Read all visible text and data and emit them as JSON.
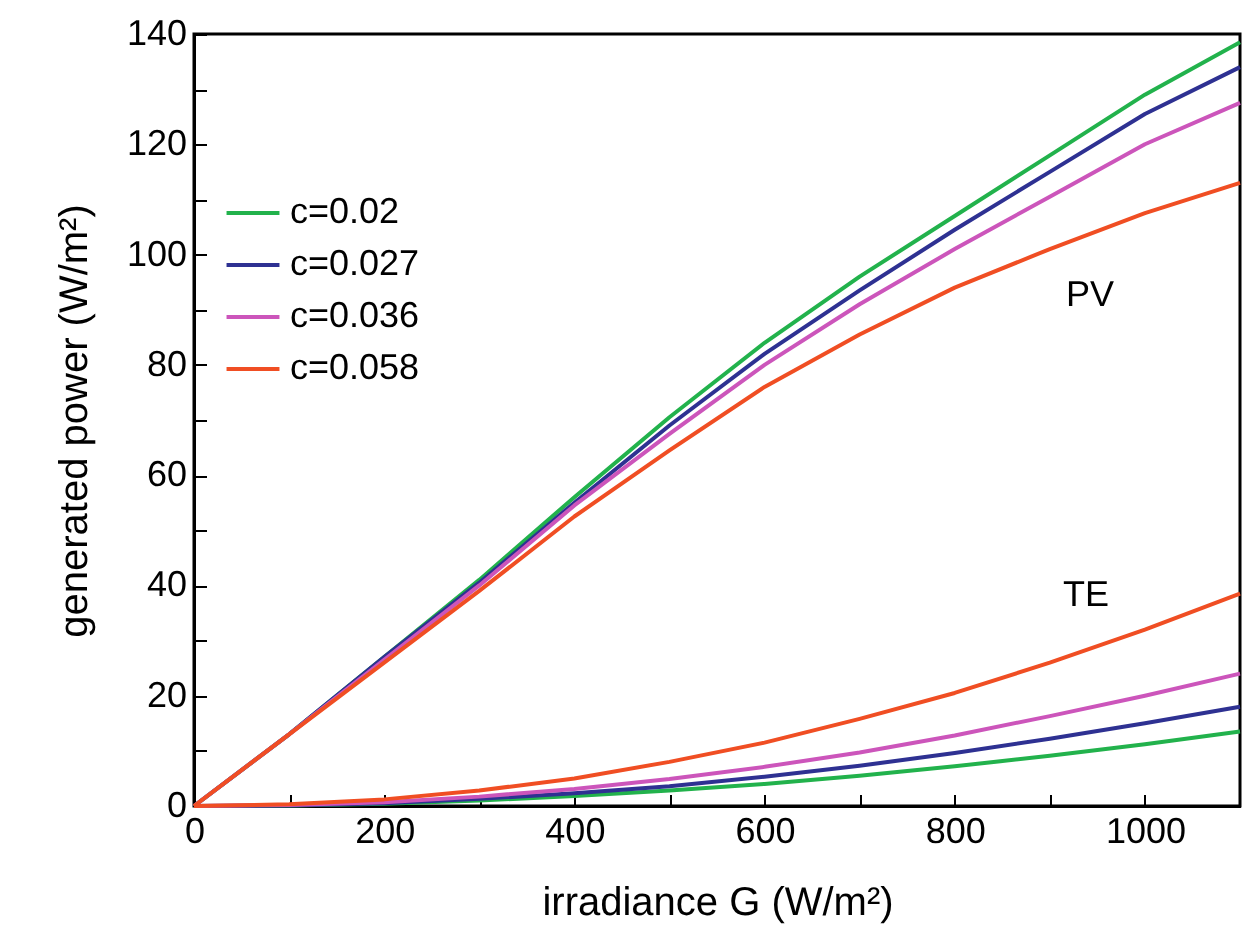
{
  "chart_data": {
    "type": "line",
    "xlabel": "irradiance G (W/m²)",
    "ylabel": "generated power (W/m²)",
    "x": [
      0,
      100,
      200,
      300,
      400,
      500,
      600,
      700,
      800,
      900,
      1000,
      1100
    ],
    "series": [
      {
        "name": "c=0.02",
        "color": "#22b24c",
        "values": [
          0,
          13,
          27,
          41,
          56,
          70.5,
          84,
          96,
          107,
          118,
          129,
          138.5
        ]
      },
      {
        "name": "c=0.027",
        "color": "#2e3192",
        "values": [
          0,
          13,
          27,
          40.5,
          55,
          69,
          82,
          93.5,
          104.5,
          115,
          125.5,
          134
        ]
      },
      {
        "name": "c=0.036",
        "color": "#cc55bb",
        "values": [
          0,
          13,
          26.5,
          40,
          54.5,
          67.5,
          80,
          91,
          101,
          110.5,
          120,
          127.5
        ]
      },
      {
        "name": "c=0.058",
        "color": "#f04e23",
        "values": [
          0,
          13,
          26,
          39,
          52.5,
          64.5,
          76,
          85.5,
          94,
          101,
          107.5,
          113
        ]
      },
      {
        "color": "#22b24c",
        "values": [
          0,
          0.1,
          0.4,
          1,
          1.8,
          2.8,
          4,
          5.5,
          7.2,
          9.1,
          11.2,
          13.5
        ]
      },
      {
        "color": "#2e3192",
        "values": [
          0,
          0.1,
          0.5,
          1.3,
          2.3,
          3.6,
          5.3,
          7.3,
          9.6,
          12.2,
          15,
          18
        ]
      },
      {
        "color": "#cc55bb",
        "values": [
          0,
          0.2,
          0.7,
          1.7,
          3.1,
          4.9,
          7.1,
          9.7,
          12.8,
          16.3,
          20,
          24
        ]
      },
      {
        "color": "#f04e23",
        "values": [
          0,
          0.3,
          1.2,
          2.8,
          5,
          8,
          11.5,
          15.8,
          20.5,
          26,
          32,
          38.5
        ]
      }
    ],
    "xlim": [
      0,
      1100
    ],
    "ylim": [
      0,
      140
    ],
    "xticks": [
      0,
      {
        "value": 100,
        "label": null
      },
      200,
      {
        "value": 300,
        "label": null
      },
      400,
      {
        "value": 500,
        "label": null
      },
      600,
      {
        "value": 700,
        "label": null
      },
      800,
      {
        "value": 900,
        "label": null
      },
      1000
    ],
    "yticks": [
      0,
      {
        "value": 10,
        "label": null
      },
      20,
      {
        "value": 30,
        "label": null
      },
      40,
      {
        "value": 50,
        "label": null
      },
      60,
      {
        "value": 70,
        "label": null
      },
      80,
      {
        "value": 90,
        "label": null
      },
      100,
      {
        "value": 110,
        "label": null
      },
      120,
      {
        "value": 130,
        "label": null
      },
      140
    ],
    "annotations": [
      "PV",
      "TE"
    ],
    "legend": "top left",
    "grid": false,
    "marker": "none",
    "line_style": "solid"
  }
}
